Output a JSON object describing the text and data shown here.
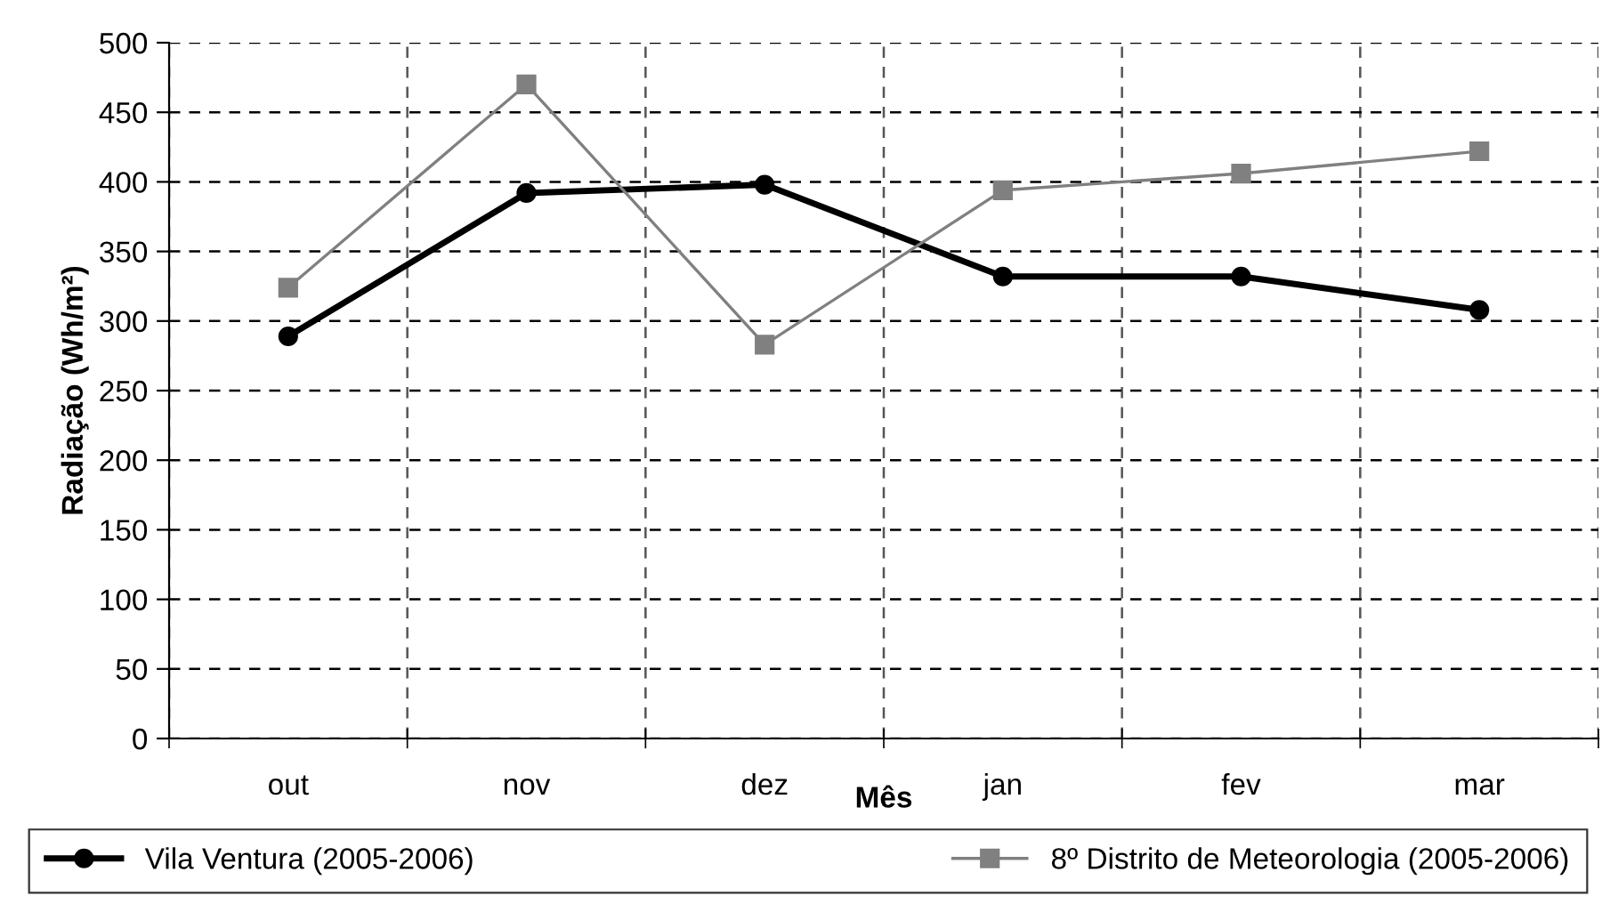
{
  "chart_data": {
    "type": "line",
    "xlabel": "Mês",
    "ylabel": "Radiação (Wh/m²)",
    "categories": [
      "out",
      "nov",
      "dez",
      "jan",
      "fev",
      "mar"
    ],
    "series": [
      {
        "name": "Vila Ventura (2005-2006)",
        "color": "#000000",
        "values": [
          289,
          392,
          398,
          332,
          332,
          308
        ],
        "marker": "circle"
      },
      {
        "name": "8º Distrito de Meteorologia (2005-2006)",
        "color": "#808080",
        "values": [
          324,
          470,
          283,
          394,
          406,
          422
        ],
        "marker": "square"
      }
    ],
    "ylim": [
      0,
      500
    ],
    "yticks": [
      0,
      50,
      100,
      150,
      200,
      250,
      300,
      350,
      400,
      450,
      500
    ],
    "grid": true,
    "legend": "bottom",
    "line_style": "solid"
  }
}
